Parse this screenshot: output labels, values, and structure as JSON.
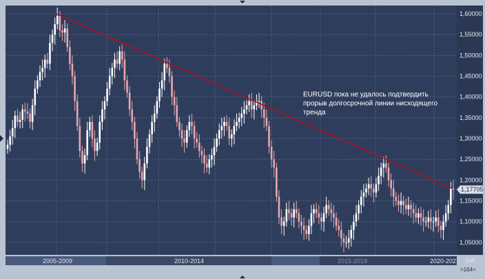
{
  "chart_data": {
    "type": "candlestick",
    "title": "",
    "ylim": [
      1.02,
      1.62
    ],
    "y_ticks": [
      "1,60000",
      "1,55000",
      "1,50000",
      "1,45000",
      "1,40000",
      "1,35000",
      "1,30000",
      "1,25000",
      "1,20000",
      "1,15000",
      "1,10000",
      "1,05000"
    ],
    "y_tick_values": [
      1.6,
      1.55,
      1.5,
      1.45,
      1.4,
      1.35,
      1.3,
      1.25,
      1.2,
      1.15,
      1.1,
      1.05
    ],
    "current_price_label": "1,17705",
    "current_price": 1.17705,
    "grid": true,
    "annotation": [
      "EURUSD пока не удалось подтвердить",
      "прорыв долгосрочной линии нисходящего",
      "тренда"
    ],
    "trendline": {
      "start": {
        "x": "2008-07",
        "y": 1.6
      },
      "end": {
        "x": "2020-12",
        "y": 1.18
      },
      "color": "#b01020"
    },
    "periods": [
      "2005-2009",
      "2010-2014",
      "2015-2019",
      "2020-202"
    ],
    "footer": {
      "count": "548",
      "zoom": ">164<"
    },
    "colors": {
      "background": "#2f3d5c",
      "up": "#ffffff",
      "down": "#e8a7ad",
      "grid": "#55627f",
      "trendline": "#b01020"
    },
    "series": [
      {
        "values": [
          1.285,
          1.305,
          1.325,
          1.355,
          1.34,
          1.345,
          1.37,
          1.365,
          1.36,
          1.34,
          1.38,
          1.42,
          1.44,
          1.46,
          1.47,
          1.49,
          1.48,
          1.53,
          1.55,
          1.575,
          1.595,
          1.56,
          1.555,
          1.565,
          1.52,
          1.48,
          1.45,
          1.39,
          1.33,
          1.27,
          1.24,
          1.26,
          1.32,
          1.34,
          1.3,
          1.27,
          1.29,
          1.34,
          1.37,
          1.39,
          1.42,
          1.45,
          1.47,
          1.49,
          1.48,
          1.51,
          1.49,
          1.44,
          1.41,
          1.37,
          1.34,
          1.3,
          1.25,
          1.22,
          1.2,
          1.24,
          1.28,
          1.31,
          1.34,
          1.36,
          1.39,
          1.42,
          1.44,
          1.48,
          1.47,
          1.45,
          1.4,
          1.38,
          1.34,
          1.32,
          1.3,
          1.29,
          1.32,
          1.34,
          1.33,
          1.3,
          1.29,
          1.27,
          1.26,
          1.24,
          1.23,
          1.25,
          1.26,
          1.28,
          1.3,
          1.32,
          1.33,
          1.34,
          1.33,
          1.3,
          1.31,
          1.33,
          1.34,
          1.35,
          1.36,
          1.37,
          1.38,
          1.39,
          1.37,
          1.38,
          1.39,
          1.39,
          1.37,
          1.35,
          1.33,
          1.28,
          1.25,
          1.23,
          1.16,
          1.11,
          1.09,
          1.1,
          1.13,
          1.12,
          1.11,
          1.13,
          1.12,
          1.1,
          1.09,
          1.08,
          1.07,
          1.09,
          1.12,
          1.13,
          1.12,
          1.11,
          1.1,
          1.12,
          1.14,
          1.13,
          1.12,
          1.11,
          1.09,
          1.08,
          1.06,
          1.05,
          1.05,
          1.06,
          1.08,
          1.1,
          1.12,
          1.14,
          1.16,
          1.17,
          1.18,
          1.19,
          1.18,
          1.17,
          1.19,
          1.21,
          1.23,
          1.24,
          1.23,
          1.2,
          1.18,
          1.16,
          1.15,
          1.14,
          1.15,
          1.14,
          1.13,
          1.14,
          1.13,
          1.12,
          1.11,
          1.12,
          1.11,
          1.1,
          1.1,
          1.11,
          1.1,
          1.1,
          1.11,
          1.09,
          1.08,
          1.1,
          1.12,
          1.14,
          1.18,
          1.177
        ]
      }
    ]
  }
}
